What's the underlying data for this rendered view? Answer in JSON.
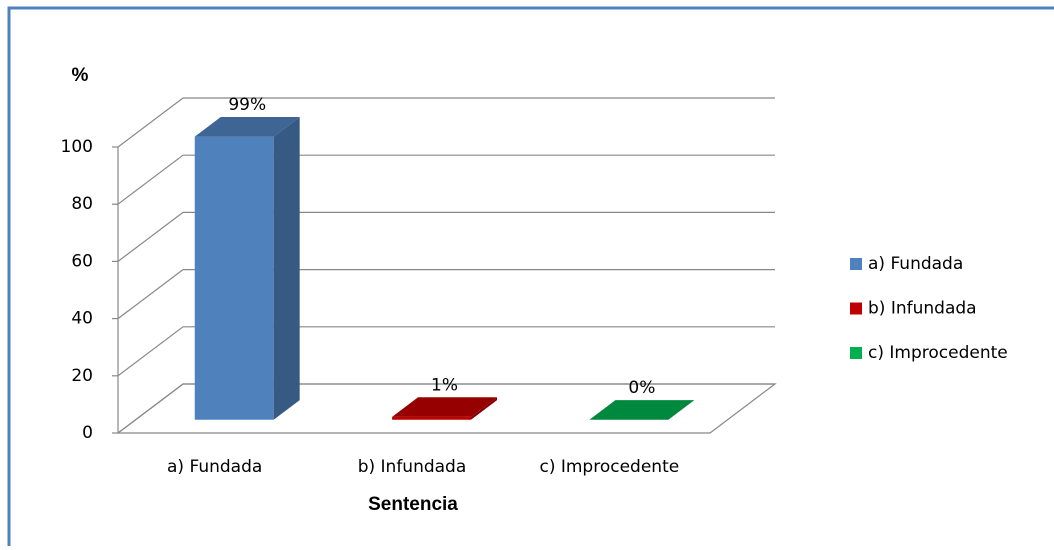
{
  "chart_data": {
    "type": "bar3d",
    "y_label": "%",
    "x_label": "Sentencia",
    "categories": [
      "a) Fundada",
      "b) Infundada",
      "c) Improcedente"
    ],
    "values": [
      99,
      1,
      0
    ],
    "value_labels": [
      "99%",
      "1%",
      "0%"
    ],
    "colors": [
      "#4f81bd",
      "#c00000",
      "#00b050"
    ],
    "ylim": [
      0,
      100
    ],
    "yticks": [
      0,
      20,
      40,
      60,
      80,
      100
    ],
    "grid": true,
    "legend": "right"
  }
}
